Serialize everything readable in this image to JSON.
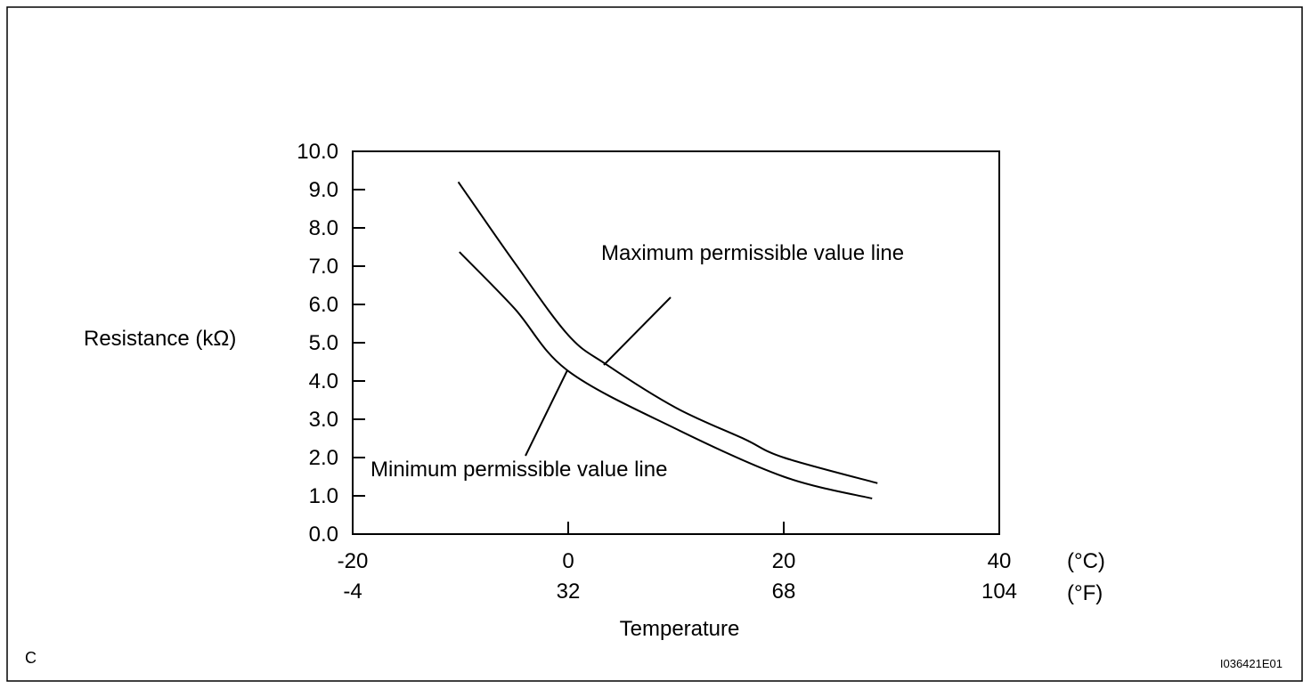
{
  "chart_data": {
    "type": "line",
    "title": "",
    "xlabel": "Temperature",
    "ylabel": "Resistance (kΩ)",
    "xlim": [
      -20,
      40
    ],
    "ylim": [
      0,
      10
    ],
    "x_ticks_c": [
      "-20",
      "0",
      "20",
      "40"
    ],
    "x_ticks_f": [
      "-4",
      "32",
      "68",
      "104"
    ],
    "x_unit_c": "(°C)",
    "x_unit_f": "(°F)",
    "y_ticks": [
      "0.0",
      "1.0",
      "2.0",
      "3.0",
      "4.0",
      "5.0",
      "6.0",
      "7.0",
      "8.0",
      "9.0",
      "10.0"
    ],
    "grid": false,
    "series": [
      {
        "name": "Maximum permissible value line",
        "x": [
          -10.2,
          -5,
          0,
          3.6,
          10,
          16.3,
          20,
          28.7
        ],
        "y": [
          9.2,
          7.1,
          5.2,
          4.42,
          3.3,
          2.49,
          2.0,
          1.33
        ]
      },
      {
        "name": "Minimum permissible value line",
        "x": [
          -10.1,
          -5,
          0,
          10,
          20,
          28.2
        ],
        "y": [
          7.37,
          5.9,
          4.26,
          2.75,
          1.5,
          0.93
        ]
      }
    ]
  },
  "footer": {
    "corner_label": "C",
    "figure_id": "I036421E01"
  }
}
